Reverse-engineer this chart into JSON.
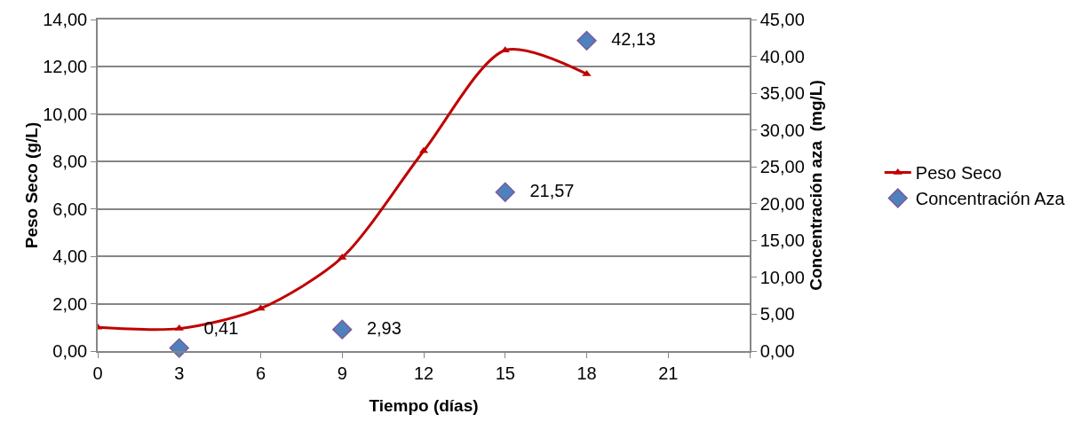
{
  "chart_data": {
    "type": "line",
    "xlabel": "Tiempo (días)",
    "ylabel": "Peso Seco (g/L)",
    "y2label": "Concentración aza  (mg/L)",
    "x": [
      0,
      3,
      6,
      9,
      12,
      15,
      18
    ],
    "series": [
      {
        "name": "Peso Seco",
        "color": "#c00000",
        "marker": "triangle",
        "values": [
          1.0,
          0.95,
          1.8,
          3.95,
          8.45,
          12.7,
          11.7
        ]
      },
      {
        "name": "Concentración Aza",
        "type": "scatter",
        "axis": "y2",
        "color": "#4f81bd",
        "marker": "diamond",
        "x": [
          3,
          9,
          15,
          18
        ],
        "values": [
          0.41,
          2.93,
          21.57,
          42.13
        ],
        "value_labels": [
          "0,41",
          "2,93",
          "21,57",
          "42,13"
        ]
      }
    ],
    "xlim": [
      0,
      24
    ],
    "xticks": [
      0,
      3,
      6,
      9,
      12,
      15,
      18,
      21,
      {
        "value": 24,
        "label": null
      }
    ],
    "ylim": [
      0,
      14
    ],
    "yticks": [
      {
        "value": 0,
        "label": "0,00"
      },
      {
        "value": 2,
        "label": "2,00"
      },
      {
        "value": 4,
        "label": "4,00"
      },
      {
        "value": 6,
        "label": "6,00"
      },
      {
        "value": 8,
        "label": "8,00"
      },
      {
        "value": 10,
        "label": "10,00"
      },
      {
        "value": 12,
        "label": "12,00"
      },
      {
        "value": 14,
        "label": "14,00"
      }
    ],
    "y2lim": [
      0,
      45
    ],
    "y2ticks": [
      {
        "value": 0,
        "label": "0,00"
      },
      {
        "value": 5,
        "label": "5,00"
      },
      {
        "value": 10,
        "label": "10,00"
      },
      {
        "value": 15,
        "label": "15,00"
      },
      {
        "value": 20,
        "label": "20,00"
      },
      {
        "value": 25,
        "label": "25,00"
      },
      {
        "value": 30,
        "label": "30,00"
      },
      {
        "value": 35,
        "label": "35,00"
      },
      {
        "value": 40,
        "label": "40,00"
      },
      {
        "value": 45,
        "label": "45,00"
      }
    ],
    "grid": "y",
    "legend": "right"
  }
}
